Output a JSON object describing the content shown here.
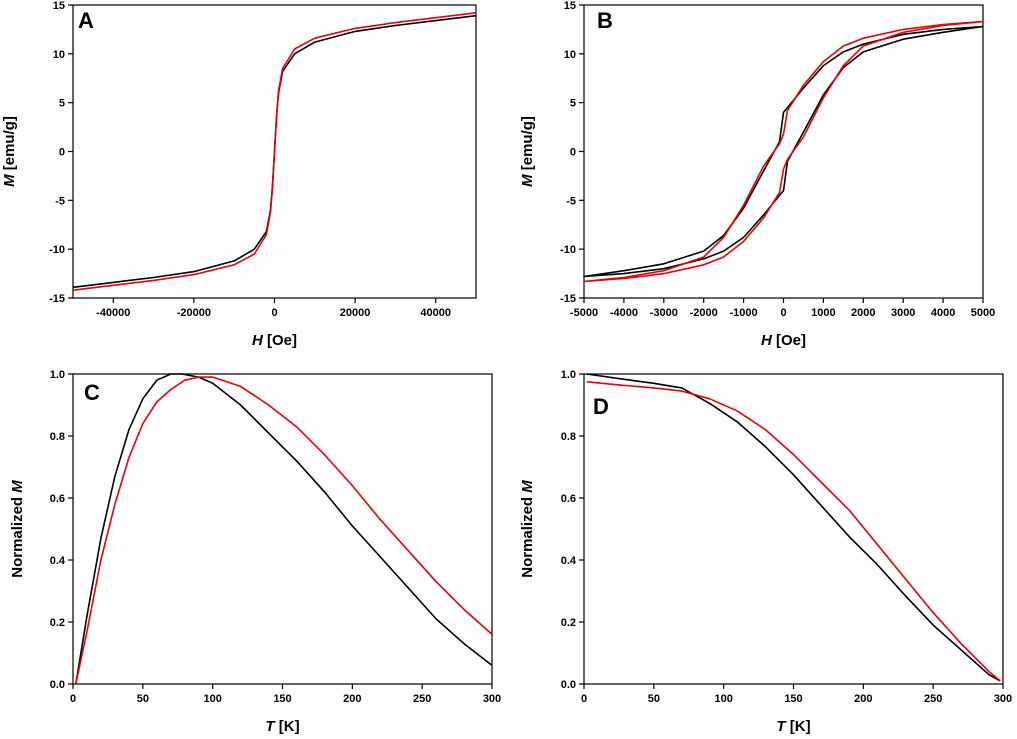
{
  "colors": {
    "black_series": "#000000",
    "red_series": "#e8000b",
    "axis": "#000000"
  },
  "chart_data": [
    {
      "panel_label": "A",
      "type": "line",
      "xlabel": {
        "var": "H",
        "unit": "[Oe]"
      },
      "ylabel": {
        "var": "M",
        "unit": "[emu/g]"
      },
      "xlim": [
        -50000,
        50000
      ],
      "ylim": [
        -15,
        15
      ],
      "xticks": [
        -40000,
        -20000,
        0,
        20000,
        40000
      ],
      "xtick_labels": [
        "-40000",
        "-20000",
        "0",
        "20000",
        "40000"
      ],
      "yticks": [
        -15,
        -10,
        -5,
        0,
        5,
        10,
        15
      ],
      "ytick_labels": [
        "-15",
        "-10",
        "-5",
        "0",
        "5",
        "10",
        "15"
      ],
      "series": [
        {
          "name": "black",
          "color": "#000000",
          "x": [
            -50000,
            -40000,
            -30000,
            -20000,
            -10000,
            -5000,
            -2000,
            -1000,
            -500,
            0,
            500,
            1000,
            2000,
            5000,
            10000,
            20000,
            30000,
            40000,
            50000
          ],
          "y": [
            -13.9,
            -13.4,
            -12.9,
            -12.3,
            -11.2,
            -10.0,
            -8.2,
            -6.0,
            -3.5,
            0,
            3.5,
            6.0,
            8.2,
            10.0,
            11.2,
            12.3,
            12.9,
            13.4,
            13.9
          ]
        },
        {
          "name": "red",
          "color": "#e8000b",
          "x": [
            -50000,
            -40000,
            -30000,
            -20000,
            -10000,
            -5000,
            -2000,
            -1000,
            -500,
            0,
            500,
            1000,
            2000,
            5000,
            10000,
            20000,
            30000,
            40000,
            50000
          ],
          "y": [
            -14.2,
            -13.7,
            -13.2,
            -12.6,
            -11.6,
            -10.5,
            -8.5,
            -6.2,
            -3.6,
            0,
            3.6,
            6.2,
            8.5,
            10.5,
            11.6,
            12.6,
            13.2,
            13.7,
            14.2
          ]
        }
      ]
    },
    {
      "panel_label": "B",
      "type": "line",
      "xlabel": {
        "var": "H",
        "unit": "[Oe]"
      },
      "ylabel": {
        "var": "M",
        "unit": "[emu/g]"
      },
      "xlim": [
        -5000,
        5000
      ],
      "ylim": [
        -15,
        15
      ],
      "xticks": [
        -5000,
        -4000,
        -3000,
        -2000,
        -1000,
        0,
        1000,
        2000,
        3000,
        4000,
        5000
      ],
      "xtick_labels": [
        "-5000",
        "-4000",
        "-3000",
        "-2000",
        "-1000",
        "0",
        "1000",
        "2000",
        "3000",
        "4000",
        "5000"
      ],
      "yticks": [
        -15,
        -10,
        -5,
        0,
        5,
        10,
        15
      ],
      "ytick_labels": [
        "-15",
        "-10",
        "-5",
        "0",
        "5",
        "10",
        "15"
      ],
      "series": [
        {
          "name": "black",
          "color": "#000000",
          "x": [
            5000,
            4000,
            3000,
            2000,
            1500,
            1000,
            500,
            100,
            0,
            -100,
            -500,
            -1000,
            -1500,
            -2000,
            -3000,
            -4000,
            -5000,
            -4000,
            -3000,
            -2000,
            -1500,
            -1000,
            -500,
            -100,
            0,
            100,
            500,
            1000,
            1500,
            2000,
            3000,
            4000,
            5000
          ],
          "y": [
            12.8,
            12.5,
            12.0,
            11.0,
            10.2,
            8.8,
            6.5,
            4.5,
            4.0,
            1.0,
            -2.0,
            -5.8,
            -8.6,
            -10.2,
            -11.5,
            -12.2,
            -12.8,
            -12.5,
            -12.0,
            -11.0,
            -10.2,
            -8.8,
            -6.5,
            -4.5,
            -4.0,
            -1.0,
            2.0,
            5.8,
            8.6,
            10.2,
            11.5,
            12.2,
            12.8
          ]
        },
        {
          "name": "red",
          "color": "#e8000b",
          "x": [
            5000,
            4000,
            3000,
            2000,
            1500,
            1000,
            500,
            100,
            0,
            -100,
            -500,
            -1000,
            -1500,
            -2000,
            -3000,
            -4000,
            -5000,
            -4000,
            -3000,
            -2000,
            -1500,
            -1000,
            -500,
            -100,
            0,
            100,
            500,
            1000,
            1500,
            2000,
            3000,
            4000,
            5000
          ],
          "y": [
            13.3,
            13.0,
            12.5,
            11.6,
            10.8,
            9.2,
            6.8,
            4.2,
            1.8,
            0.8,
            -1.5,
            -5.5,
            -8.8,
            -10.8,
            -12.2,
            -12.9,
            -13.3,
            -13.0,
            -12.5,
            -11.6,
            -10.8,
            -9.2,
            -6.8,
            -4.2,
            -1.8,
            -0.8,
            1.5,
            5.5,
            8.8,
            10.8,
            12.2,
            12.9,
            13.3
          ]
        }
      ]
    },
    {
      "panel_label": "C",
      "type": "line",
      "xlabel": {
        "var": "T",
        "unit": "[K]"
      },
      "ylabel": {
        "prefix": "Normalized",
        "var": "M"
      },
      "xlim": [
        0,
        300
      ],
      "ylim": [
        0,
        1.0
      ],
      "xticks": [
        0,
        50,
        100,
        150,
        200,
        250,
        300
      ],
      "xtick_labels": [
        "0",
        "50",
        "100",
        "150",
        "200",
        "250",
        "300"
      ],
      "yticks": [
        0,
        0.2,
        0.4,
        0.6,
        0.8,
        1.0
      ],
      "ytick_labels": [
        "0.0",
        "0.2",
        "0.4",
        "0.6",
        "0.8",
        "1.0"
      ],
      "series": [
        {
          "name": "black",
          "color": "#000000",
          "x": [
            2,
            10,
            20,
            30,
            40,
            50,
            60,
            70,
            78,
            90,
            100,
            120,
            140,
            160,
            180,
            200,
            220,
            240,
            260,
            280,
            300
          ],
          "y": [
            0.0,
            0.22,
            0.47,
            0.67,
            0.82,
            0.92,
            0.98,
            1.0,
            1.0,
            0.99,
            0.97,
            0.9,
            0.81,
            0.72,
            0.62,
            0.51,
            0.41,
            0.31,
            0.21,
            0.13,
            0.06
          ]
        },
        {
          "name": "red",
          "color": "#e8000b",
          "x": [
            2,
            10,
            20,
            30,
            40,
            50,
            60,
            70,
            80,
            90,
            100,
            120,
            140,
            160,
            180,
            200,
            220,
            240,
            260,
            280,
            300
          ],
          "y": [
            0.0,
            0.17,
            0.4,
            0.58,
            0.73,
            0.84,
            0.91,
            0.95,
            0.98,
            0.99,
            0.99,
            0.96,
            0.9,
            0.83,
            0.74,
            0.64,
            0.53,
            0.43,
            0.33,
            0.24,
            0.16
          ]
        }
      ]
    },
    {
      "panel_label": "D",
      "type": "line",
      "xlabel": {
        "var": "T",
        "unit": "[K]"
      },
      "ylabel": {
        "prefix": "Normalized",
        "var": "M"
      },
      "xlim": [
        0,
        300
      ],
      "ylim": [
        0,
        1.0
      ],
      "xticks": [
        0,
        50,
        100,
        150,
        200,
        250,
        300
      ],
      "xtick_labels": [
        "0",
        "50",
        "100",
        "150",
        "200",
        "250",
        "300"
      ],
      "yticks": [
        0,
        0.2,
        0.4,
        0.6,
        0.8,
        1.0
      ],
      "ytick_labels": [
        "0.0",
        "0.2",
        "0.4",
        "0.6",
        "0.8",
        "1.0"
      ],
      "series": [
        {
          "name": "black",
          "color": "#000000",
          "x": [
            2,
            25,
            50,
            70,
            90,
            110,
            130,
            150,
            170,
            190,
            210,
            230,
            250,
            270,
            290,
            298
          ],
          "y": [
            1.0,
            0.985,
            0.97,
            0.955,
            0.905,
            0.845,
            0.765,
            0.675,
            0.575,
            0.475,
            0.385,
            0.285,
            0.19,
            0.11,
            0.03,
            0.01
          ]
        },
        {
          "name": "red",
          "color": "#e8000b",
          "x": [
            2,
            25,
            50,
            70,
            90,
            110,
            130,
            150,
            170,
            190,
            210,
            230,
            250,
            270,
            290,
            298
          ],
          "y": [
            0.975,
            0.965,
            0.955,
            0.945,
            0.92,
            0.88,
            0.82,
            0.74,
            0.65,
            0.56,
            0.45,
            0.34,
            0.23,
            0.13,
            0.04,
            0.01
          ]
        }
      ]
    }
  ]
}
